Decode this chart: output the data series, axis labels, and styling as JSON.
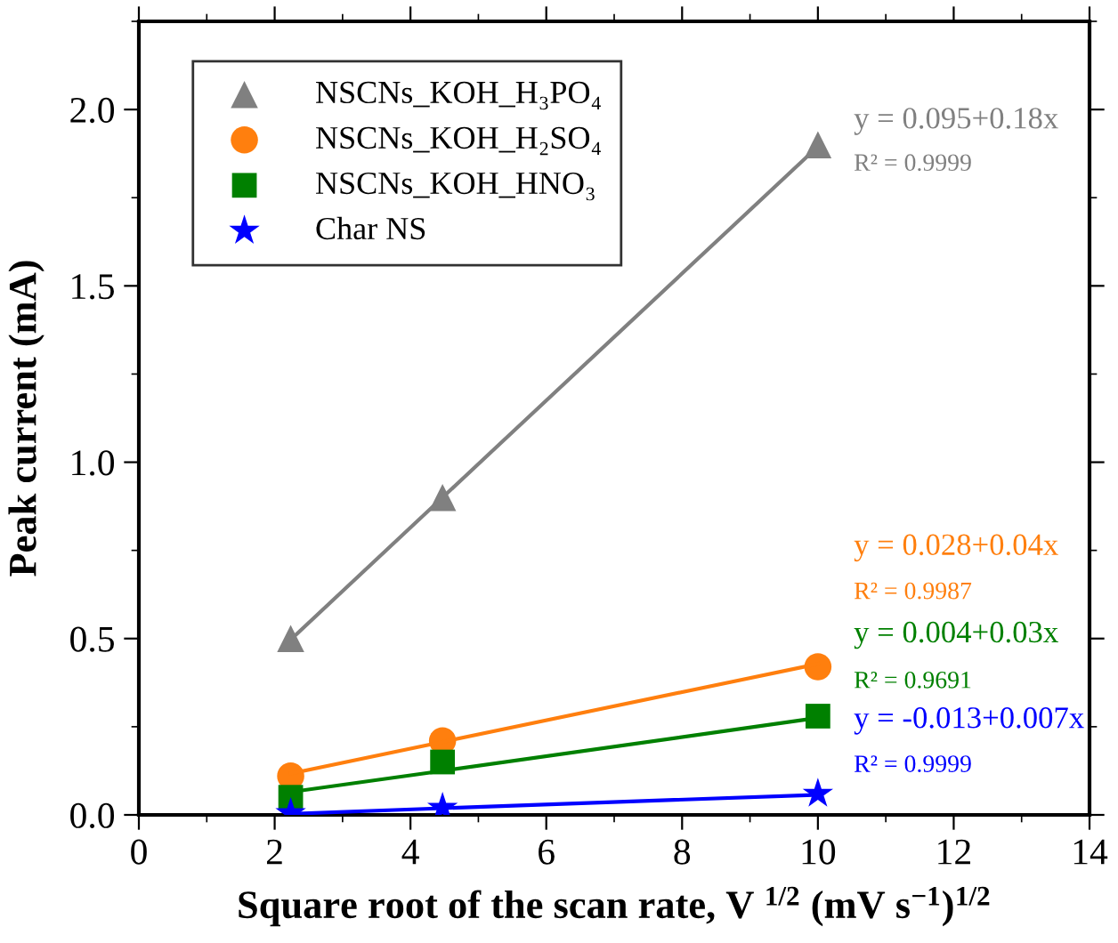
{
  "chart_data": {
    "type": "scatter",
    "xlabel": "Square root of the scan rate, V $^{1/2}$ (mV s$^{−1}$)$^{1/2}$",
    "ylabel": "Peak current (mA)",
    "xlim": [
      0,
      14
    ],
    "ylim": [
      0,
      2.25
    ],
    "xticks": [
      0,
      2,
      4,
      6,
      8,
      10,
      12,
      14
    ],
    "yticks": [
      {
        "value": 0,
        "label": "0.0"
      },
      {
        "value": 0.5,
        "label": "0.5"
      },
      {
        "value": 1,
        "label": "1.0"
      },
      {
        "value": 1.5,
        "label": "1.5"
      },
      {
        "value": 2,
        "label": "2.0"
      }
    ],
    "grid": false,
    "legend": "top left",
    "x": [
      2.236,
      4.472,
      10
    ],
    "series": [
      {
        "name": "NSCNs_KOH_H₃PO₄",
        "color": "#808080",
        "marker": "triangle",
        "values": [
          0.5,
          0.9,
          1.9
        ]
      },
      {
        "name": "NSCNs_KOH_H₂SO₄",
        "color": "#ff7f0e",
        "marker": "circle",
        "values": [
          0.11,
          0.21,
          0.42
        ]
      },
      {
        "name": "NSCNs_KOH_HNO₃",
        "color": "#008000",
        "marker": "square",
        "values": [
          0.05,
          0.15,
          0.28
        ]
      },
      {
        "name": "Char NS",
        "color": "#0000ff",
        "marker": "star",
        "values": [
          0.005,
          0.02,
          0.06
        ]
      },
      {
        "type": "line",
        "color": "#808080",
        "marker": "none",
        "values": [
          0.497,
          0.9,
          1.895
        ]
      },
      {
        "type": "line",
        "color": "#ff7f0e",
        "marker": "none",
        "values": [
          0.117,
          0.207,
          0.428
        ]
      },
      {
        "type": "line",
        "color": "#008000",
        "marker": "none",
        "values": [
          0.065,
          0.125,
          0.275
        ]
      },
      {
        "type": "line",
        "color": "#0000ff",
        "marker": "none",
        "values": [
          0.003,
          0.019,
          0.057
        ]
      }
    ],
    "annotations": [
      "y = 0.095+0.18x",
      "R² = 0.9999",
      "y = 0.028+0.04x",
      "R² = 0.9987",
      "y = 0.004+0.03x",
      "R² = 0.9691",
      "y = -0.013+0.007x",
      "R² = 0.9999"
    ]
  }
}
